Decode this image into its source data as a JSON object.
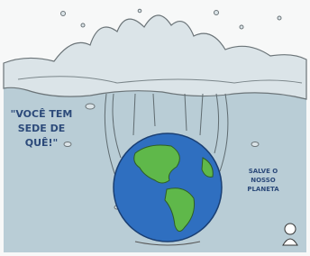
{
  "left_text": {
    "lines": [
      "\"VOCÊ TEM",
      "SEDE DE",
      "QUÊ!\""
    ]
  },
  "right_text": {
    "lines": [
      "SALVE O",
      "NOSSO",
      "PLANETA"
    ]
  }
}
